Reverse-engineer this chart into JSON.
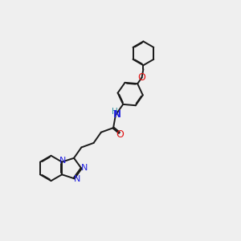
{
  "bg_color": "#efefef",
  "bond_color": "#1a1a1a",
  "N_color": "#2020e0",
  "O_color": "#e01010",
  "NH_color": "#3090a0",
  "lw": 1.4,
  "dbo": 0.032,
  "fs": 8.0,
  "xlim": [
    -0.5,
    10.5
  ],
  "ylim": [
    -0.5,
    10.5
  ]
}
